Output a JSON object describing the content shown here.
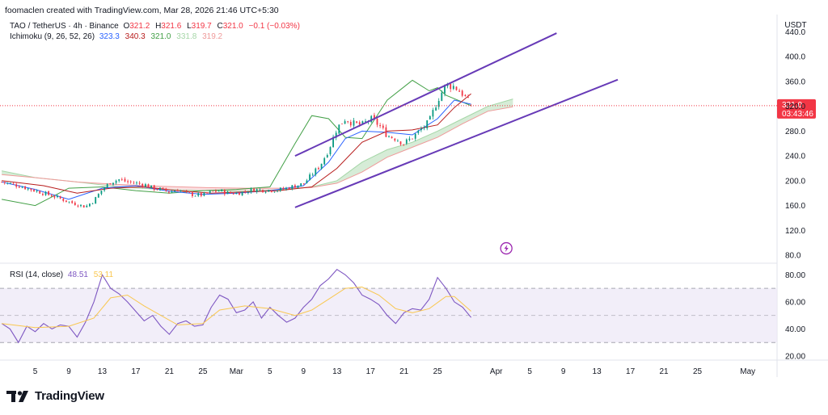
{
  "header": {
    "attribution": "foomaclen created with TradingView.com, Mar 28, 2026 21:46 UTC+5:30",
    "symbol": "TAO / TetherUS · 4h · Binance",
    "ohlc": {
      "o_label": "O",
      "o": "321.2",
      "h_label": "H",
      "h": "321.6",
      "l_label": "L",
      "l": "319.7",
      "c_label": "C",
      "c": "321.0",
      "change": "−0.1 (−0.03%)"
    },
    "ichimoku": {
      "label": "Ichimoku (9, 26, 52, 26)",
      "values": [
        "323.3",
        "340.3",
        "321.0",
        "331.8",
        "319.2"
      ]
    },
    "rsi": {
      "label": "RSI (14, close)",
      "values": [
        "48.51",
        "53.11"
      ]
    },
    "currency": "USDT"
  },
  "price_tag": {
    "price": "321.0",
    "countdown": "03:43:46"
  },
  "logo_text": "TradingView",
  "colors": {
    "up": "#089981",
    "down": "#f23645",
    "tenkan": "#2962ff",
    "kijun": "#b71c1c",
    "chikou": "#43a047",
    "span_a": "#a5d6a7",
    "span_b": "#ef9a9a",
    "cloud_bull": "#c8e6c9",
    "cloud_bear": "#f8d7da",
    "trendline": "#673ab7",
    "rsi": "#7e57c2",
    "rsi_ma": "#f9c74f",
    "rsi_band": "#ede7f6"
  },
  "chart_data": [
    {
      "type": "candlestick",
      "symbol": "TAO / TetherUS",
      "interval": "4h",
      "exchange": "Binance",
      "x_ticks": [
        "5",
        "9",
        "13",
        "17",
        "21",
        "25",
        "Mar",
        "5",
        "9",
        "13",
        "17",
        "21",
        "25",
        "Apr",
        "5",
        "9",
        "13",
        "17",
        "21",
        "25",
        "May"
      ],
      "x_tick_days": [
        5,
        9,
        13,
        17,
        21,
        25,
        29,
        33,
        37,
        41,
        45,
        49,
        53,
        60,
        64,
        68,
        72,
        76,
        80,
        84,
        90
      ],
      "y_ticks": [
        "440.0",
        "400.0",
        "360.0",
        "320.0",
        "280.0",
        "240.0",
        "200.0",
        "160.0",
        "120.0",
        "80.0"
      ],
      "y_tick_values": [
        440,
        400,
        360,
        320,
        280,
        240,
        200,
        160,
        120,
        80
      ],
      "ylim": [
        67,
        468
      ],
      "xlim": [
        0.8,
        93.5
      ],
      "last_price": 321.0,
      "close_path": [
        [
          1,
          198
        ],
        [
          3,
          192
        ],
        [
          5,
          184
        ],
        [
          7,
          176
        ],
        [
          9,
          166
        ],
        [
          10,
          162
        ],
        [
          11,
          158
        ],
        [
          12,
          168
        ],
        [
          13,
          186
        ],
        [
          14,
          198
        ],
        [
          15,
          202
        ],
        [
          16,
          198
        ],
        [
          17,
          196
        ],
        [
          18,
          194
        ],
        [
          19,
          188
        ],
        [
          20,
          186
        ],
        [
          21,
          182
        ],
        [
          22,
          186
        ],
        [
          23,
          180
        ],
        [
          24,
          177
        ],
        [
          25,
          177
        ],
        [
          26,
          182
        ],
        [
          27,
          184
        ],
        [
          28,
          180
        ],
        [
          29,
          180
        ],
        [
          30,
          182
        ],
        [
          31,
          186
        ],
        [
          32,
          185
        ],
        [
          33,
          185
        ],
        [
          34,
          185
        ],
        [
          35,
          188
        ],
        [
          36,
          192
        ],
        [
          37,
          195
        ],
        [
          38,
          210
        ],
        [
          39,
          225
        ],
        [
          40,
          250
        ],
        [
          41,
          285
        ],
        [
          42,
          300
        ],
        [
          43,
          292
        ],
        [
          44,
          290
        ],
        [
          45,
          300
        ],
        [
          46,
          290
        ],
        [
          47,
          273
        ],
        [
          48,
          268
        ],
        [
          49,
          260
        ],
        [
          50,
          270
        ],
        [
          51,
          282
        ],
        [
          52,
          295
        ],
        [
          53,
          330
        ],
        [
          54,
          355
        ],
        [
          55,
          352
        ],
        [
          56,
          340
        ],
        [
          57,
          321
        ]
      ],
      "candle_step_days": 0.35,
      "ichimoku": {
        "params": [
          9,
          26,
          52,
          26
        ],
        "tenkan": [
          [
            1,
            198
          ],
          [
            5,
            186
          ],
          [
            9,
            170
          ],
          [
            13,
            188
          ],
          [
            17,
            192
          ],
          [
            21,
            183
          ],
          [
            25,
            178
          ],
          [
            29,
            180
          ],
          [
            33,
            184
          ],
          [
            37,
            192
          ],
          [
            40,
            230
          ],
          [
            42,
            268
          ],
          [
            44,
            280
          ],
          [
            47,
            278
          ],
          [
            50,
            274
          ],
          [
            53,
            300
          ],
          [
            55,
            330
          ],
          [
            57,
            323.3
          ]
        ],
        "kijun": [
          [
            1,
            200
          ],
          [
            6,
            192
          ],
          [
            10,
            180
          ],
          [
            14,
            188
          ],
          [
            18,
            190
          ],
          [
            22,
            184
          ],
          [
            26,
            180
          ],
          [
            30,
            182
          ],
          [
            34,
            184
          ],
          [
            38,
            190
          ],
          [
            41,
            220
          ],
          [
            44,
            262
          ],
          [
            47,
            280
          ],
          [
            50,
            282
          ],
          [
            53,
            290
          ],
          [
            55,
            318
          ],
          [
            57,
            340.3
          ]
        ],
        "chikou": [
          [
            1,
            170
          ],
          [
            5,
            160
          ],
          [
            9,
            188
          ],
          [
            13,
            190
          ],
          [
            17,
            184
          ],
          [
            21,
            180
          ],
          [
            25,
            184
          ],
          [
            29,
            186
          ],
          [
            33,
            190
          ],
          [
            36,
            260
          ],
          [
            38,
            305
          ],
          [
            40,
            300
          ],
          [
            42,
            270
          ],
          [
            44,
            268
          ],
          [
            47,
            330
          ],
          [
            50,
            362
          ],
          [
            52,
            345
          ],
          [
            53,
            350
          ],
          [
            54,
            338
          ],
          [
            57,
            321
          ]
        ],
        "span_a": [
          [
            1,
            216
          ],
          [
            5,
            205
          ],
          [
            10,
            198
          ],
          [
            15,
            190
          ],
          [
            20,
            186
          ],
          [
            25,
            184
          ],
          [
            30,
            183
          ],
          [
            35,
            186
          ],
          [
            38,
            190
          ],
          [
            41,
            200
          ],
          [
            44,
            230
          ],
          [
            47,
            250
          ],
          [
            50,
            262
          ],
          [
            53,
            280
          ],
          [
            56,
            300
          ],
          [
            59,
            320
          ],
          [
            62,
            331.8
          ]
        ],
        "span_b": [
          [
            1,
            210
          ],
          [
            5,
            205
          ],
          [
            10,
            198
          ],
          [
            15,
            194
          ],
          [
            20,
            191
          ],
          [
            25,
            189
          ],
          [
            30,
            188
          ],
          [
            35,
            188
          ],
          [
            38,
            189
          ],
          [
            41,
            196
          ],
          [
            44,
            214
          ],
          [
            47,
            238
          ],
          [
            50,
            254
          ],
          [
            53,
            270
          ],
          [
            56,
            292
          ],
          [
            59,
            312
          ],
          [
            62,
            319.2
          ]
        ]
      },
      "trendlines": [
        {
          "from": [
            36,
            240
          ],
          "to": [
            67.2,
            438
          ]
        },
        {
          "from": [
            36,
            157
          ],
          "to": [
            74.5,
            363
          ]
        }
      ],
      "markers": [
        {
          "type": "event-icon",
          "x": 61.2,
          "y": 91
        }
      ]
    },
    {
      "type": "line",
      "title": "RSI (14, close)",
      "y_ticks": [
        "80.00",
        "60.00",
        "40.00",
        "20.00"
      ],
      "y_tick_values": [
        80,
        60,
        40,
        20
      ],
      "ylim": [
        17,
        85
      ],
      "band": [
        30,
        70
      ],
      "middle": 50,
      "series": [
        {
          "key": "rsi",
          "values": [
            [
              1,
              44
            ],
            [
              2,
              40
            ],
            [
              3,
              30
            ],
            [
              4,
              42
            ],
            [
              5,
              38
            ],
            [
              6,
              44
            ],
            [
              7,
              40
            ],
            [
              8,
              43
            ],
            [
              9,
              42
            ],
            [
              10,
              34
            ],
            [
              11,
              45
            ],
            [
              12,
              60
            ],
            [
              13,
              80
            ],
            [
              14,
              70
            ],
            [
              15,
              66
            ],
            [
              16,
              60
            ],
            [
              17,
              53
            ],
            [
              18,
              46
            ],
            [
              19,
              50
            ],
            [
              20,
              42
            ],
            [
              21,
              36
            ],
            [
              22,
              44
            ],
            [
              23,
              46
            ],
            [
              24,
              42
            ],
            [
              25,
              43
            ],
            [
              26,
              56
            ],
            [
              27,
              65
            ],
            [
              28,
              62
            ],
            [
              29,
              52
            ],
            [
              30,
              54
            ],
            [
              31,
              60
            ],
            [
              32,
              48
            ],
            [
              33,
              56
            ],
            [
              34,
              50
            ],
            [
              35,
              45
            ],
            [
              36,
              48
            ],
            [
              37,
              56
            ],
            [
              38,
              62
            ],
            [
              39,
              72
            ],
            [
              40,
              77
            ],
            [
              41,
              84
            ],
            [
              42,
              80
            ],
            [
              43,
              74
            ],
            [
              44,
              65
            ],
            [
              45,
              62
            ],
            [
              46,
              58
            ],
            [
              47,
              50
            ],
            [
              48,
              44
            ],
            [
              49,
              52
            ],
            [
              50,
              55
            ],
            [
              51,
              54
            ],
            [
              52,
              62
            ],
            [
              53,
              78
            ],
            [
              54,
              70
            ],
            [
              55,
              60
            ],
            [
              56,
              56
            ],
            [
              57,
              48.51
            ]
          ]
        },
        {
          "key": "rsi_ma",
          "values": [
            [
              1,
              44
            ],
            [
              5,
              41
            ],
            [
              9,
              42
            ],
            [
              12,
              48
            ],
            [
              14,
              63
            ],
            [
              16,
              65
            ],
            [
              18,
              57
            ],
            [
              20,
              50
            ],
            [
              22,
              43
            ],
            [
              25,
              44
            ],
            [
              27,
              54
            ],
            [
              30,
              57
            ],
            [
              33,
              55
            ],
            [
              36,
              50
            ],
            [
              38,
              54
            ],
            [
              40,
              62
            ],
            [
              42,
              70
            ],
            [
              44,
              71
            ],
            [
              46,
              65
            ],
            [
              48,
              55
            ],
            [
              50,
              52
            ],
            [
              52,
              55
            ],
            [
              54,
              64
            ],
            [
              55,
              64
            ],
            [
              57,
              53.11
            ]
          ]
        }
      ]
    }
  ]
}
